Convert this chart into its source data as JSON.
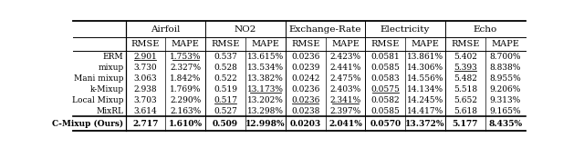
{
  "col_groups": [
    "Airfoil",
    "NO2",
    "Exchange-Rate",
    "Electricity",
    "Echo"
  ],
  "sub_cols": [
    "RMSE",
    "MAPE"
  ],
  "row_labels": [
    "ERM",
    "mixup",
    "Mani mixup",
    "k-Mixup",
    "Local Mixup",
    "MixRL",
    "C-Mixup (Ours)"
  ],
  "data": [
    [
      "2.901",
      "1.753%",
      "0.537",
      "13.615%",
      "0.0236",
      "2.423%",
      "0.0581",
      "13.861%",
      "5.402",
      "8.700%"
    ],
    [
      "3.730",
      "2.327%",
      "0.528",
      "13.534%",
      "0.0239",
      "2.441%",
      "0.0585",
      "14.306%",
      "5.393",
      "8.838%"
    ],
    [
      "3.063",
      "1.842%",
      "0.522",
      "13.382%",
      "0.0242",
      "2.475%",
      "0.0583",
      "14.556%",
      "5.482",
      "8.955%"
    ],
    [
      "2.938",
      "1.769%",
      "0.519",
      "13.173%",
      "0.0236",
      "2.403%",
      "0.0575",
      "14.134%",
      "5.518",
      "9.206%"
    ],
    [
      "3.703",
      "2.290%",
      "0.517",
      "13.202%",
      "0.0236",
      "2.341%",
      "0.0582",
      "14.245%",
      "5.652",
      "9.313%"
    ],
    [
      "3.614",
      "2.163%",
      "0.527",
      "13.298%",
      "0.0238",
      "2.397%",
      "0.0585",
      "14.417%",
      "5.618",
      "9.165%"
    ],
    [
      "2.717",
      "1.610%",
      "0.509",
      "12.998%",
      "0.0203",
      "2.041%",
      "0.0570",
      "13.372%",
      "5.177",
      "8.435%"
    ]
  ],
  "underline": [
    [
      true,
      true,
      false,
      false,
      false,
      false,
      false,
      false,
      false,
      false
    ],
    [
      false,
      false,
      false,
      false,
      false,
      false,
      false,
      false,
      true,
      false
    ],
    [
      false,
      false,
      false,
      false,
      false,
      false,
      false,
      false,
      false,
      false
    ],
    [
      false,
      false,
      false,
      true,
      false,
      false,
      true,
      false,
      false,
      false
    ],
    [
      false,
      false,
      true,
      false,
      true,
      true,
      false,
      false,
      false,
      false
    ],
    [
      false,
      false,
      false,
      false,
      false,
      false,
      false,
      false,
      false,
      false
    ],
    [
      false,
      false,
      false,
      false,
      false,
      false,
      false,
      false,
      false,
      false
    ]
  ],
  "fontsize_data": 6.5,
  "fontsize_header": 7.0,
  "fontsize_group": 7.5
}
